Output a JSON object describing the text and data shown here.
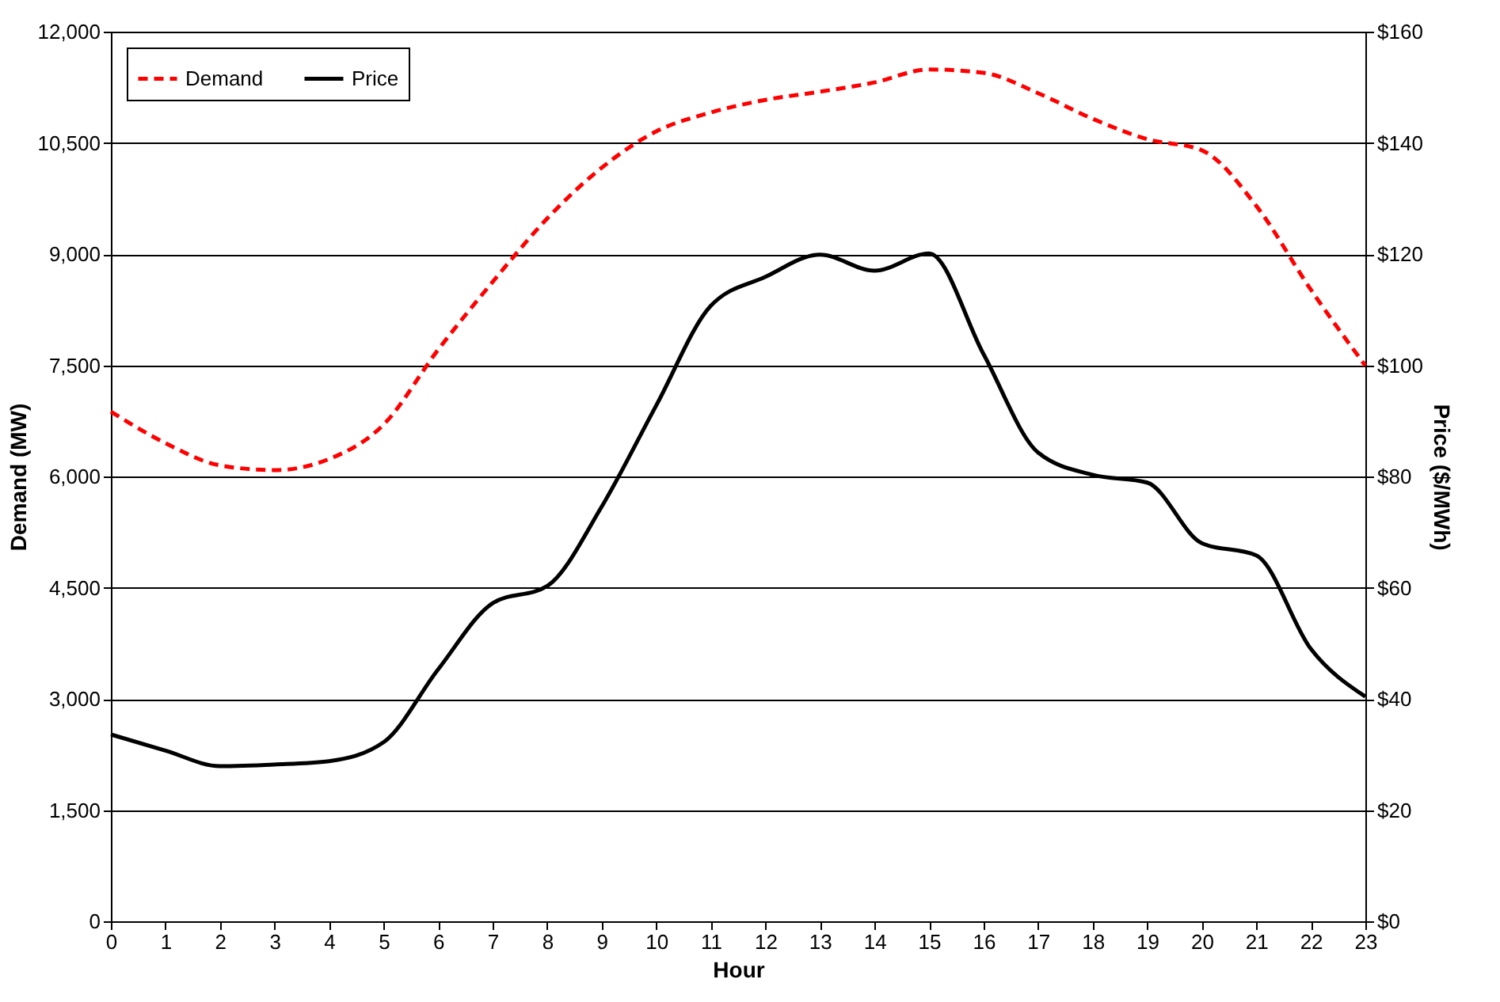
{
  "chart_data": {
    "type": "line",
    "xlabel": "Hour",
    "ylabel": "Demand (MW)",
    "y2label": "Price ($/MWh)",
    "x": [
      0,
      1,
      2,
      3,
      4,
      5,
      6,
      7,
      8,
      9,
      10,
      11,
      12,
      13,
      14,
      15,
      16,
      17,
      18,
      19,
      20,
      21,
      22,
      23
    ],
    "series": [
      {
        "name": "Demand",
        "color": "#ff0000",
        "line_style": "dashed",
        "values": [
          6875,
          6450,
          6150,
          6085,
          6235,
          6700,
          7710,
          8625,
          9480,
          10165,
          10655,
          10910,
          11080,
          11190,
          11315,
          11490,
          11445,
          11170,
          10825,
          10550,
          10400,
          9650,
          8520,
          7495
        ]
      },
      {
        "name": "Price",
        "color": "#000000",
        "line_style": "solid",
        "axis": "y2",
        "values": [
          33.6,
          30.7,
          27.9,
          28.2,
          28.8,
          32.2,
          45.3,
          57.2,
          60.3,
          74.6,
          92.8,
          110.7,
          115.9,
          119.9,
          117,
          120.1,
          102,
          84.3,
          80.3,
          78.9,
          68,
          65.8,
          49,
          40.4
        ]
      }
    ],
    "xlim": [
      0,
      23
    ],
    "xticks": [
      0,
      1,
      2,
      3,
      4,
      5,
      6,
      7,
      8,
      9,
      10,
      11,
      12,
      13,
      14,
      15,
      16,
      17,
      18,
      19,
      20,
      21,
      22,
      23
    ],
    "ylim": [
      0,
      12000
    ],
    "yticks": [
      0,
      {
        "value": 1500,
        "label": "1,500"
      },
      {
        "value": 3000,
        "label": "3,000"
      },
      {
        "value": 4500,
        "label": "4,500"
      },
      {
        "value": 6000,
        "label": "6,000"
      },
      {
        "value": 7500,
        "label": "7,500"
      },
      {
        "value": 9000,
        "label": "9,000"
      },
      {
        "value": 10500,
        "label": "10,500"
      },
      {
        "value": 12000,
        "label": "12,000"
      }
    ],
    "y2lim": [
      0,
      160
    ],
    "y2ticks": [
      {
        "value": 0,
        "label": "$0"
      },
      {
        "value": 20,
        "label": "$20"
      },
      {
        "value": 40,
        "label": "$40"
      },
      {
        "value": 60,
        "label": "$60"
      },
      {
        "value": 80,
        "label": "$80"
      },
      {
        "value": 100,
        "label": "$100"
      },
      {
        "value": 120,
        "label": "$120"
      },
      {
        "value": 140,
        "label": "$140"
      },
      {
        "value": 160,
        "label": "$160"
      }
    ],
    "grid": "y",
    "legend": "top left",
    "marker": "none"
  }
}
